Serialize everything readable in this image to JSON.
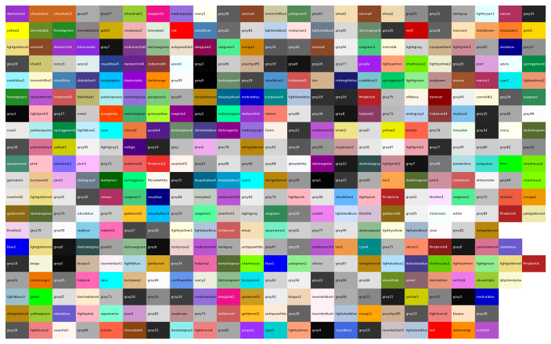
{
  "chart_data": {
    "type": "table",
    "title": "",
    "columns": 23,
    "rows": 20,
    "cells": [
      [
        "darkorchid",
        "chocolate3",
        "chocolate3",
        "gray67",
        "grey57",
        "olivedrab3",
        "deeppink2",
        "mediumpurple",
        "ivory1",
        "grey36",
        "sienna4",
        "lemonchiffon2",
        "palegreen4",
        "gray67",
        "wheat1",
        "sienna4",
        "wheat2",
        "gray55",
        "grey32",
        "darkgray",
        "lightcyan1",
        "maroon",
        "gray14",
        "lemonchiffon"
      ],
      [
        "yellow1",
        "olivedrab4",
        "forestgreen",
        "lavenderblush4",
        "gold3",
        "rosybrown2",
        "honeydew2",
        "red",
        "steelblue",
        "grey42",
        "grey85",
        "lightsteelblue2",
        "mistyrose1",
        "lightsteelblue4",
        "gray85",
        "darkseagreen4",
        "grey20",
        "red3",
        "gray38",
        "moccasin",
        "sandybrown",
        "chocolate1",
        "gold1",
        "cadetblue3"
      ],
      [
        "lightgoldenrod",
        "sienna4",
        "darkorchid",
        "blueviolet",
        "gray7",
        "mediumorchid4",
        "darkseagreen",
        "antiquewhite2",
        "deeppink4",
        "seagreen2",
        "orange3",
        "grey35",
        "grey40",
        "sienna4",
        "gray94",
        "seagreen3",
        "cornsilk",
        "lightgray",
        "navajowhite3",
        "lightpink3",
        "grey65",
        "darkblue",
        "gray57"
      ],
      [
        "grey29",
        "khaki3",
        "ivory3",
        "azure2",
        "royalblue4",
        "darkorchid4",
        "indianred4",
        "azure1",
        "gray2",
        "grey80",
        "peachpuff3",
        "grey19",
        "gray8",
        "gray24",
        "gray77",
        "purple",
        "lightsalmon",
        "chartreuse2",
        "lightyellow2",
        "gray25",
        "plum",
        "azure",
        "springgreen4"
      ],
      [
        "cadetblue1",
        "lemonchiffon1",
        "steelblue",
        "slateblue4",
        "deepskyblue",
        "darkviolet",
        "darkorange",
        "gray99",
        "grey0",
        "darkseagreen4",
        "grey28",
        "steelblue3",
        "indianred3",
        "tan",
        "midnightblue",
        "cadetblue3",
        "springgreen3",
        "lightgreen",
        "rosybrown",
        "sienna",
        "maroon3",
        "cyan2",
        "lightsalmon2",
        "gold2"
      ],
      [
        "forestgreen",
        "mediumorchid",
        "indianred3",
        "darkkhaki",
        "paleturquoise",
        "mediumpurple",
        "palegreen3",
        "gray67",
        "darkgoldenrod",
        "deepskyblue4",
        "mediumblue",
        "turquoise4",
        "lightsteelblue",
        "gray19",
        "grey16",
        "firebrick",
        "gray75",
        "oldlace",
        "darkred",
        "gray94",
        "cornsilk1",
        "grey36",
        "seagreen"
      ],
      [
        "gray3",
        "lightpink1",
        "gray17",
        "snow3",
        "orangered",
        "mediumseagreen",
        "greenyellow",
        "magenta4",
        "gray2",
        "mediumspringgreen",
        "darkorchid",
        "salmon",
        "grey89",
        "grey30",
        "grey8",
        "hotpink4",
        "gray73",
        "slategray2",
        "indianred4",
        "skyblue2",
        "grey15",
        "gray66",
        "gray99"
      ],
      [
        "snow2",
        "paleturquoise",
        "springgreen4",
        "lightblue1",
        "cyan",
        "sienna2",
        "purple4",
        "darkseagreen4",
        "darkslateblue",
        "darkmagenta",
        "mediumpurple",
        "linen",
        "gray21",
        "mediumorchid",
        "khaki2",
        "grey87",
        "yellow2",
        "tomato",
        "grey78",
        "honeydew",
        "gray14",
        "ivory",
        "darkolivegreen",
        "bisque1"
      ],
      [
        "gray30",
        "palevioletred",
        "yellow3",
        "gray95",
        "lightgray1",
        "indigo",
        "gray14",
        "grey",
        "plum2",
        "grey78",
        "darkgoldenrod",
        "grey83",
        "grey34",
        "grey59",
        "rosybrown3",
        "gray91",
        "gray97",
        "lightpink2",
        "gray17",
        "gray90",
        "gray80",
        "gray82",
        "gray55",
        "navajowhite",
        "papayawhip"
      ],
      [
        "aquamarine4",
        "pink",
        "slateblue1",
        "plum1",
        "gray72",
        "indianred2",
        "firebrick2",
        "seashell1",
        "gray63",
        "gray88",
        "gray68",
        "grey88",
        "ghostwhite",
        "darkmagenta",
        "gray10",
        "darkslategray",
        "lightpink3",
        "gray7",
        "grey46",
        "powderblue",
        "turquoise",
        "lime",
        "chartreuse2"
      ],
      [
        "gainsboro",
        "burlywood2",
        "plum2",
        "slategray4",
        "darkgreen",
        "springgreen",
        "floralwhite",
        "gray11",
        "deepskyblue4",
        "deepskyblue3",
        "cyan1",
        "darkgoldenrod",
        "grey59",
        "gray1",
        "grey22",
        "gray68",
        "tan1",
        "darkolivegreen",
        "pink3",
        "indianred",
        "whitesmoke",
        "grey69",
        "chartreuse"
      ],
      [
        "seashell2",
        "lightgoldenrod",
        "gray91",
        "gray30",
        "maroon",
        "seagreen3",
        "navyblue",
        "gray88",
        "honeydew3",
        "mediumorchid",
        "gray93",
        "gray76",
        "lightpink",
        "gray90",
        "steelblue1",
        "lightpink",
        "firebrick",
        "gray92",
        "thistle1",
        "seagreen2",
        "grey75",
        "tomato2",
        "orange2"
      ],
      [
        "goldenrod4",
        "darkolivegreen",
        "gray70",
        "aliceblue",
        "gray79",
        "goldenrod1",
        "deepskyblue1",
        "gray70",
        "seagreen1",
        "seashell3",
        "lightgray",
        "seagreen",
        "grey50",
        "violet",
        "lightsteelblue1",
        "thistle",
        "goldenrod4",
        "grey95",
        "mintcream",
        "white",
        "grey89",
        "firebrick",
        "palegoldenrod"
      ],
      [
        "thistle2",
        "grey78",
        "gray99",
        "skyblue",
        "hotpink1",
        "grey27",
        "gray38",
        "lightyellow1",
        "lightsteelblue",
        "indianred",
        "wheat",
        "aquamarine2",
        "grey81",
        "gray77",
        "gray90",
        "darkseagreen",
        "lightyellow",
        "lightsteelblue3",
        "snow",
        "grey82",
        "darkgoldenrod"
      ],
      [
        "blue2",
        "lightgoldenrod",
        "gray8",
        "darkslategray",
        "gray63",
        "darkseagreen",
        "gray6",
        "mistyrose2",
        "mediumorchid",
        "darkgray",
        "antiquewhite",
        "gray67",
        "grey50",
        "mediumorchid",
        "tan2",
        "cyan4",
        "gray71",
        "salmon1",
        "firebrick4",
        "gray9",
        "palevioletred",
        "slateblue"
      ],
      [
        "gray19",
        "beige",
        "gray5",
        "bisque3",
        "lavenderblush1",
        "lightblue",
        "goldenrod",
        "gray39",
        "hotpink2",
        "darkolivegreen",
        "chartreuse",
        "blue1",
        "palegreen2",
        "silver",
        "grey87",
        "darkgoldenrod",
        "lightskyblue1",
        "darkslateblue",
        "chartreuse3",
        "lightsalmon",
        "lightgreen",
        "lightgoldenrod",
        "firebrick"
      ],
      [
        "grey63",
        "darkorange2",
        "grey45",
        "hotpink",
        "aqua",
        "burlywood",
        "grey99",
        "cornflowerblue",
        "ivory2",
        "darkseagreen",
        "turquoise2",
        "grey83",
        "gray94",
        "grey22",
        "grey66",
        "grey88",
        "olivedrab",
        "pink4",
        "darksalmon",
        "orchid2",
        "olivedrab3",
        "lightgoldenrodyellow"
      ],
      [
        "lightblue3",
        "green",
        "gray87",
        "blanchedalmond",
        "gray73",
        "gray18",
        "grey54",
        "gray24",
        "mediumpurple",
        "deeppink2",
        "goldenrod3",
        "gray93",
        "bisque2",
        "lavenderblush",
        "grey68",
        "gray53",
        "gray11",
        "yellow3",
        "grey51",
        "gray3",
        "mediumblue"
      ],
      [
        "darkgoldenrod",
        "yellowgreen",
        "slateblue",
        "lightpink",
        "aquamarine",
        "plum3",
        "gray85",
        "rosybrown",
        "grey73",
        "indianred",
        "goldenrod1",
        "antiquewhite",
        "grey39",
        "lavenderblush",
        "lightsteelblue",
        "orange1",
        "peachpuff3",
        "gray33",
        "lightcoral",
        "bisque",
        "gray38"
      ],
      [
        "gray34",
        "lightcoral",
        "seashell",
        "gray68",
        "tomato",
        "chocolate4",
        "gray15",
        "darkslategray2",
        "lightcoral",
        "gray65",
        "purple1",
        "cyan3",
        "lightsalmon",
        "gray4",
        "royalblue",
        "gray19",
        "lavenderblush3",
        "lightsteelblue",
        "red",
        "darkorange",
        "orchid3"
      ]
    ],
    "colors": [
      [
        "#9932cc",
        "#cd661d",
        "#cd661d",
        "#ababab",
        "#919191",
        "#9acd32",
        "#ee1289",
        "#9370db",
        "#fffff0",
        "#5c5c5c",
        "#8b4726",
        "#cdc9a5",
        "#548b54",
        "#ababab",
        "#f5deb3",
        "#8b4726",
        "#eed8ae",
        "#8c8c8c",
        "#525252",
        "#a9a9a9",
        "#e0ffff",
        "#b03060",
        "#242424",
        "#fffacd"
      ],
      [
        "#ffff00",
        "#698b22",
        "#228b22",
        "#8b8386",
        "#cdad00",
        "#eeb4b4",
        "#e0eee0",
        "#ff0000",
        "#4682b4",
        "#6b6b6b",
        "#d9d9d9",
        "#bcd2ee",
        "#ffe4e1",
        "#6e7b8b",
        "#d9d9d9",
        "#698b69",
        "#333333",
        "#cd0000",
        "#616161",
        "#ffe4b5",
        "#f4a460",
        "#ff7f24",
        "#ffd700",
        "#8ee5ee"
      ],
      [
        "#eedd82",
        "#8b4726",
        "#9932cc",
        "#8a2be2",
        "#121212",
        "#7a378b",
        "#8fbc8f",
        "#eedfcc",
        "#8b0a50",
        "#4eee94",
        "#cd8500",
        "#595959",
        "#666666",
        "#8b4726",
        "#f0f0f0",
        "#43cd80",
        "#fff8dc",
        "#d3d3d3",
        "#cdb38b",
        "#cd8c95",
        "#a6a6a6",
        "#00008b",
        "#919191"
      ],
      [
        "#4a4a4a",
        "#cdc673",
        "#cdcdc1",
        "#e0eeee",
        "#27408b",
        "#68228b",
        "#8b3a3a",
        "#f0ffff",
        "#050505",
        "#cccccc",
        "#cdaf95",
        "#303030",
        "#141414",
        "#3d3d3d",
        "#c4c4c4",
        "#a020f0",
        "#ffa07a",
        "#76ee00",
        "#eeeed1",
        "#404040",
        "#dda0dd",
        "#f0ffff",
        "#008b45"
      ],
      [
        "#98f5ff",
        "#fffacd",
        "#4682b4",
        "#473c8b",
        "#00bfff",
        "#9400d3",
        "#ff8c00",
        "#fcfcfc",
        "#000000",
        "#698b69",
        "#474747",
        "#4f94cd",
        "#cd5555",
        "#d2b48c",
        "#191970",
        "#7ac5cd",
        "#00cd66",
        "#90ee90",
        "#bc8f8f",
        "#a0522d",
        "#b03060",
        "#00eeee",
        "#ee9572",
        "#eec900"
      ],
      [
        "#228b22",
        "#ba55d3",
        "#cd5555",
        "#bdb76b",
        "#afeeee",
        "#9370db",
        "#7ccd7c",
        "#ababab",
        "#b8860b",
        "#00688b",
        "#0000cd",
        "#00868b",
        "#b0c4de",
        "#303030",
        "#292929",
        "#b22222",
        "#bfbfbf",
        "#fdf5e6",
        "#8b0000",
        "#f0f0f0",
        "#fff8dc",
        "#5c5c5c",
        "#2e8b57"
      ],
      [
        "#080808",
        "#ffaeb9",
        "#2b2b2b",
        "#cdc9c9",
        "#ff4500",
        "#3cb371",
        "#adff2f",
        "#8b008b",
        "#050505",
        "#00fa9a",
        "#9932cc",
        "#fa8072",
        "#e3e3e3",
        "#4d4d4d",
        "#141414",
        "#8b3a62",
        "#bababa",
        "#b9d3ee",
        "#8b3a3a",
        "#7ec0ee",
        "#262626",
        "#a8a8a8",
        "#fcfcfc"
      ],
      [
        "#eee9e9",
        "#afeeee",
        "#008b45",
        "#bfefff",
        "#00ffff",
        "#ee7942",
        "#551a8b",
        "#698b69",
        "#483d8b",
        "#8b008b",
        "#9370db",
        "#faf0e6",
        "#363636",
        "#ba55d3",
        "#eee685",
        "#dedede",
        "#eeee00",
        "#ff6347",
        "#c7c7c7",
        "#f0fff0",
        "#242424",
        "#fffff0",
        "#556b2f",
        "#ffe4c4"
      ],
      [
        "#4d4d4d",
        "#db7093",
        "#cdcd00",
        "#f2f2f2",
        "#d3d3d3",
        "#4b0082",
        "#242424",
        "#bebebe",
        "#eeaeee",
        "#c7c7c7",
        "#b8860b",
        "#d4d4d4",
        "#575757",
        "#969696",
        "#cd9b9b",
        "#e8e8e8",
        "#f7f7f7",
        "#eea2ad",
        "#2b2b2b",
        "#e5e5e5",
        "#cccccc",
        "#d1d1d1",
        "#8c8c8c",
        "#ffdead",
        "#ffefd5"
      ],
      [
        "#458b74",
        "#ffc0cb",
        "#836fff",
        "#ffbbff",
        "#b8b8b8",
        "#ee6363",
        "#ee2c2c",
        "#fff5ee",
        "#a1a1a1",
        "#e0e0e0",
        "#adadad",
        "#e0e0e0",
        "#f8f8ff",
        "#8b008b",
        "#1a1a1a",
        "#2f4f4f",
        "#cd8c95",
        "#121212",
        "#757575",
        "#b0e0e6",
        "#40e0d0",
        "#00ff00",
        "#76ee00"
      ],
      [
        "#dcdcdc",
        "#eec591",
        "#eeaeee",
        "#6c7b8b",
        "#006400",
        "#00ff7f",
        "#fffaf0",
        "#1c1c1c",
        "#00688b",
        "#009acd",
        "#00ffff",
        "#b8860b",
        "#969696",
        "#030303",
        "#383838",
        "#adadad",
        "#ffa54f",
        "#556b2f",
        "#cd919e",
        "#cd5c5c",
        "#f5f5f5",
        "#b0b0b0",
        "#7fff00"
      ],
      [
        "#eee5de",
        "#eedd82",
        "#e8e8e8",
        "#4d4d4d",
        "#b03060",
        "#43cd80",
        "#000080",
        "#e0e0e0",
        "#c1cdc1",
        "#ba55d3",
        "#ededed",
        "#c2c2c2",
        "#ffb6c1",
        "#e5e5e5",
        "#63b8ff",
        "#ffb6c1",
        "#b22222",
        "#ebebeb",
        "#ffe1ff",
        "#4eee94",
        "#bfbfbf",
        "#ee5c42",
        "#ee9a00"
      ],
      [
        "#8b6914",
        "#556b2f",
        "#b3b3b3",
        "#f0f8ff",
        "#c9c9c9",
        "#ffc125",
        "#00bfff",
        "#b3b3b3",
        "#54ff9f",
        "#cdc5bf",
        "#d3d3d3",
        "#2e8b57",
        "#7f7f7f",
        "#ee82ee",
        "#cae1ff",
        "#d8bfd8",
        "#8b6914",
        "#f2f2f2",
        "#f5fffa",
        "#ffffff",
        "#e3e3e3",
        "#b22222",
        "#eee8aa"
      ],
      [
        "#eed2ee",
        "#c7c7c7",
        "#fcfcfc",
        "#87ceeb",
        "#ff6eb4",
        "#454545",
        "#616161",
        "#ffffe0",
        "#b0c4de",
        "#cd5c5c",
        "#f5deb3",
        "#76eec6",
        "#cfcfcf",
        "#c4c4c4",
        "#e5e5e5",
        "#8fbc8f",
        "#ffffe0",
        "#a2b5cd",
        "#fffafa",
        "#d1d1d1",
        "#b8860b"
      ],
      [
        "#0000ee",
        "#eedd82",
        "#141414",
        "#2f4f4f",
        "#a1a1a1",
        "#8fbc8f",
        "#0f0f0f",
        "#eed5d2",
        "#ba55d3",
        "#a9a9a9",
        "#faebd7",
        "#ababab",
        "#7f7f7f",
        "#ba55d3",
        "#ee9a49",
        "#008b8b",
        "#b5b5b5",
        "#ff8c69",
        "#8b1a1a",
        "#171717",
        "#db7093",
        "#6a5acd"
      ],
      [
        "#303030",
        "#f5f5dc",
        "#0d0d0d",
        "#cdb79e",
        "#fff0f5",
        "#add8e6",
        "#daa520",
        "#636363",
        "#ee6aa7",
        "#556b2f",
        "#7fff00",
        "#0000ff",
        "#90ee90",
        "#c0c0c0",
        "#dedede",
        "#b8860b",
        "#b0e2ff",
        "#483d8b",
        "#66cd00",
        "#ffa07a",
        "#90ee90",
        "#eedd82",
        "#b22222"
      ],
      [
        "#a1a1a1",
        "#ee7600",
        "#737373",
        "#ff69b4",
        "#00ffff",
        "#deb887",
        "#fcfcfc",
        "#6495ed",
        "#eeeee0",
        "#8fbc8f",
        "#00e5ee",
        "#d4d4d4",
        "#f0f0f0",
        "#383838",
        "#a8a8a8",
        "#e0e0e0",
        "#6b8e23",
        "#8b636c",
        "#e9967a",
        "#ee7ae9",
        "#9acd32",
        "#fafad2"
      ],
      [
        "#9ac0cd",
        "#00ff00",
        "#dedede",
        "#ffebcd",
        "#bababa",
        "#2e2e2e",
        "#8a8a8a",
        "#3d3d3d",
        "#9370db",
        "#ee1289",
        "#cd9b1d",
        "#ededed",
        "#eed5b7",
        "#fff0f5",
        "#adadad",
        "#878787",
        "#1c1c1c",
        "#cdcd00",
        "#828282",
        "#080808",
        "#0000cd"
      ],
      [
        "#b8860b",
        "#9acd32",
        "#6a5acd",
        "#ffb6c1",
        "#7fffd4",
        "#cd96cd",
        "#d9d9d9",
        "#bc8f8f",
        "#bababa",
        "#cd5c5c",
        "#ffc125",
        "#faebd7",
        "#636363",
        "#fff0f5",
        "#b0c4de",
        "#ffa500",
        "#cdaf95",
        "#545454",
        "#f08080",
        "#ffe4c4",
        "#616161"
      ],
      [
        "#575757",
        "#f08080",
        "#fff5ee",
        "#adadad",
        "#ff6347",
        "#8b4513",
        "#262626",
        "#8deeee",
        "#f08080",
        "#a6a6a6",
        "#9b30ff",
        "#00cdcd",
        "#ffa07a",
        "#0a0a0a",
        "#4169e1",
        "#303030",
        "#cdc1c5",
        "#b0c4de",
        "#ff0000",
        "#ff8c00",
        "#b452cd"
      ]
    ]
  }
}
